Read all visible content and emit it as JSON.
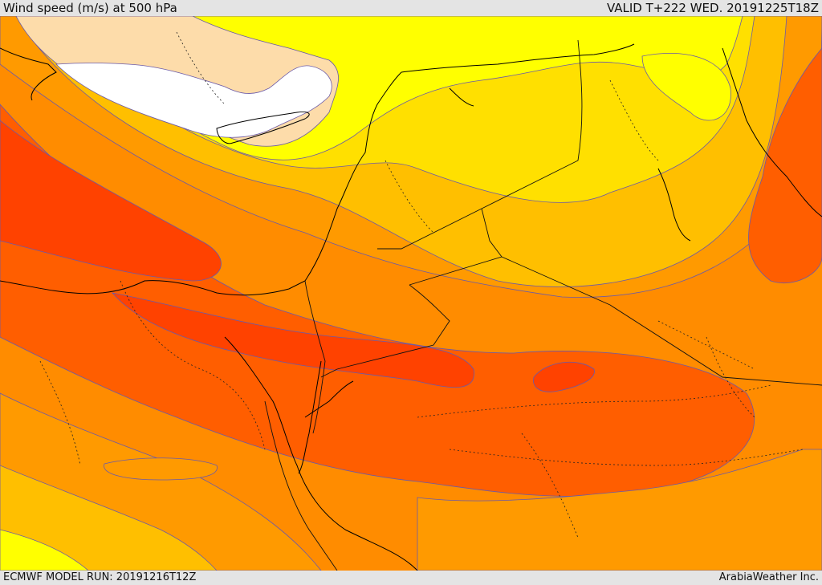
{
  "header": {
    "title": "Wind speed (m/s) at 500 hPa",
    "valid_time": "VALID T+222 WED. 20191225T18Z"
  },
  "footer": {
    "model_run": "ECMWF MODEL RUN: 20191216T12Z",
    "credit": "ArabiaWeather Inc."
  },
  "map": {
    "variable": "wind speed",
    "units": "m/s",
    "level": "500 hPa",
    "region": "Eastern Mediterranean / Middle East",
    "colors": {
      "calm": "#ffffff",
      "very_light": "#fddcaa",
      "light": "#ffff00",
      "moderate_low": "#ffe000",
      "moderate": "#ffbf00",
      "moderate_high": "#ff9a00",
      "strong": "#ff7a00",
      "very_strong": "#ff5e00",
      "jet": "#ff4200",
      "coastline": "#000000",
      "border": "#333333",
      "contour": "#6b5aa8"
    }
  }
}
